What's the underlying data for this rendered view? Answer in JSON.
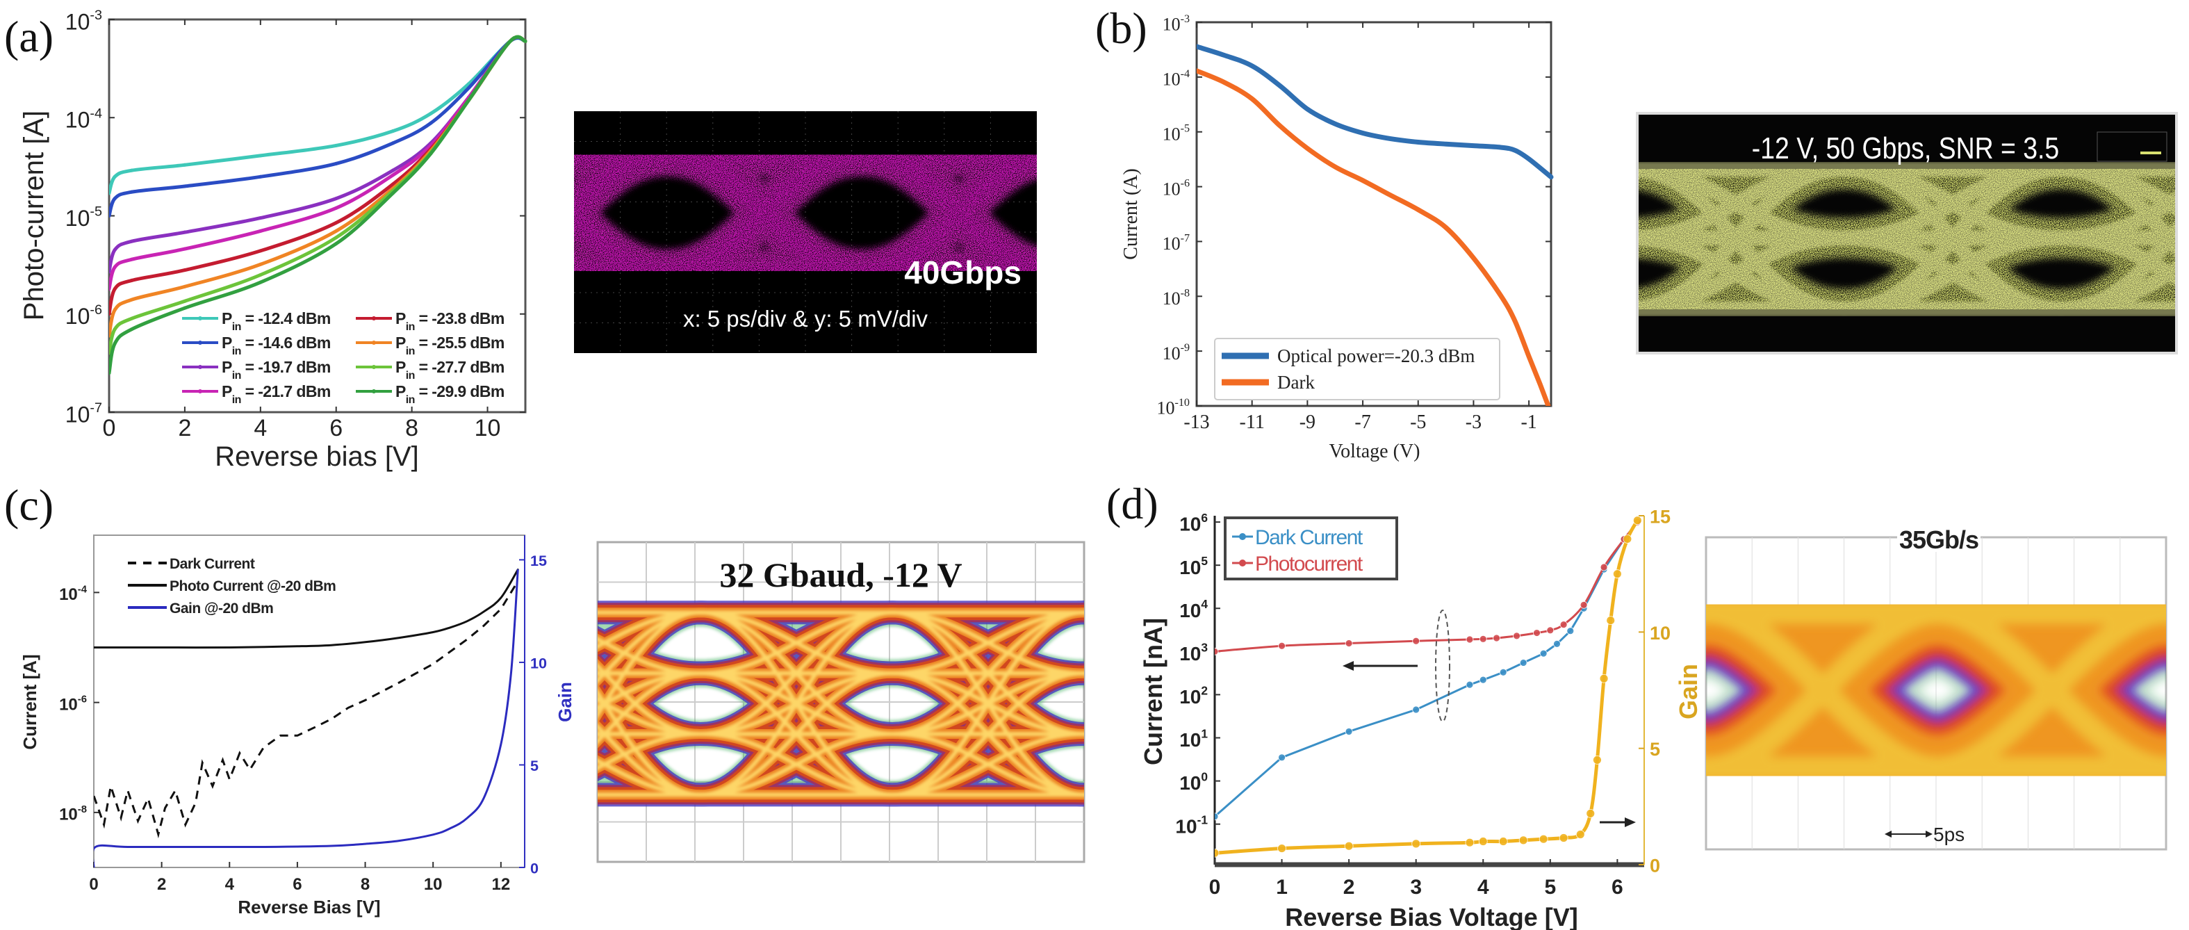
{
  "panel_labels": [
    "(a)",
    "(b)",
    "(c)",
    "(d)"
  ],
  "eyes": [
    {
      "panel": "(a)",
      "texts": [
        "40Gbps",
        "x: 5 ps/div & y: 5 mV/div"
      ],
      "trace_color": "#e020c8",
      "background": "#000000"
    },
    {
      "panel": "(b)",
      "texts": [
        "-12 V, 50 Gbps, SNR = 3.5"
      ],
      "trace_color": "#d8e070",
      "background": "#050505"
    },
    {
      "panel": "(c)",
      "texts": [
        "32 Gbaud, -12 V"
      ],
      "background": "#ffffff"
    },
    {
      "panel": "(d)",
      "texts": [
        "35Gb/s",
        "5ps"
      ],
      "background": "#ffffff"
    }
  ],
  "chart_data": [
    {
      "type": "line",
      "panel": "(a)",
      "xlabel": "Reverse bias [V]",
      "ylabel": "Photo-current [A]",
      "yscale": "log",
      "xlim": [
        0,
        11
      ],
      "ylim": [
        1e-07,
        0.001
      ],
      "xticks": [
        0,
        2,
        4,
        6,
        8,
        10
      ],
      "yticks": [
        1e-07,
        1e-06,
        1e-05,
        0.0001,
        0.001
      ],
      "ytick_labels": [
        {
          "base": "10",
          "exp": "-7"
        },
        {
          "base": "10",
          "exp": "-6"
        },
        {
          "base": "10",
          "exp": "-5"
        },
        {
          "base": "10",
          "exp": "-4"
        },
        {
          "base": "10",
          "exp": "-3"
        }
      ],
      "grid": false,
      "legend": "bottom-right",
      "series": [
        {
          "name_parts": [
            "P",
            "in",
            " = -12.4 dBm"
          ],
          "color": "#3ec8b8",
          "x": [
            0,
            0.15,
            0.6,
            2,
            4,
            6,
            7.5,
            8.5,
            9.5,
            10.6,
            11
          ],
          "y": [
            1.7e-05,
            2.5e-05,
            2.9e-05,
            3.3e-05,
            4.1e-05,
            5.2e-05,
            7.3e-05,
            0.00011,
            0.00022,
            0.0006,
            0.0006
          ]
        },
        {
          "name_parts": [
            "P",
            "in",
            " = -14.6 dBm"
          ],
          "color": "#2a4cc4",
          "x": [
            0,
            0.15,
            0.6,
            2,
            4,
            6,
            7.5,
            8.5,
            9.5,
            10.6,
            11
          ],
          "y": [
            1e-05,
            1.5e-05,
            1.75e-05,
            2e-05,
            2.5e-05,
            3.4e-05,
            5.5e-05,
            8.8e-05,
            0.0002,
            0.0006,
            0.0006
          ]
        },
        {
          "name_parts": [
            "P",
            "in",
            " = -19.7 dBm"
          ],
          "color": "#8a30c0",
          "x": [
            0,
            0.15,
            0.6,
            2,
            4,
            6,
            7.5,
            8.5,
            9.5,
            10.6,
            11
          ],
          "y": [
            2.7e-06,
            4.5e-06,
            5.5e-06,
            6.8e-06,
            9.5e-06,
            1.5e-05,
            2.9e-05,
            5.5e-05,
            0.00016,
            0.0006,
            0.0006
          ]
        },
        {
          "name_parts": [
            "P",
            "in",
            " = -21.7 dBm"
          ],
          "color": "#c824b4",
          "x": [
            0,
            0.15,
            0.6,
            2,
            4,
            6,
            7.5,
            8.5,
            9.5,
            10.6,
            11
          ],
          "y": [
            1.8e-06,
            3e-06,
            3.6e-06,
            4.6e-06,
            7e-06,
            1.2e-05,
            2.6e-05,
            5.2e-05,
            0.00016,
            0.0006,
            0.0006
          ]
        },
        {
          "name_parts": [
            "P",
            "in",
            " = -23.8 dBm"
          ],
          "color": "#c41c30",
          "x": [
            0,
            0.15,
            0.6,
            2,
            4,
            6,
            7.5,
            8.5,
            9.5,
            10.6,
            11
          ],
          "y": [
            1e-06,
            1.8e-06,
            2.2e-06,
            2.8e-06,
            4.4e-06,
            8.5e-06,
            2.1e-05,
            4.8e-05,
            0.00015,
            0.0006,
            0.0006
          ]
        },
        {
          "name_parts": [
            "P",
            "in",
            " = -25.5 dBm"
          ],
          "color": "#f08424",
          "x": [
            0,
            0.15,
            0.6,
            2,
            4,
            6,
            7.5,
            8.5,
            9.5,
            10.6,
            11
          ],
          "y": [
            6e-07,
            1.1e-06,
            1.4e-06,
            1.9e-06,
            3.2e-06,
            7e-06,
            1.9e-05,
            4.6e-05,
            0.00015,
            0.0006,
            0.0006
          ]
        },
        {
          "name_parts": [
            "P",
            "in",
            " = -27.7 dBm"
          ],
          "color": "#6cc43a",
          "x": [
            0,
            0.15,
            0.6,
            2,
            4,
            6,
            7.5,
            8.5,
            9.5,
            10.6,
            11
          ],
          "y": [
            4e-07,
            7e-07,
            9e-07,
            1.35e-06,
            2.5e-06,
            6e-06,
            1.8e-05,
            4.4e-05,
            0.00015,
            0.0006,
            0.0006
          ]
        },
        {
          "name_parts": [
            "P",
            "in",
            " = -29.9 dBm"
          ],
          "color": "#32a040",
          "x": [
            0,
            0.15,
            0.6,
            2,
            4,
            6,
            7.5,
            8.5,
            9.5,
            10.6,
            11
          ],
          "y": [
            2.5e-07,
            5e-07,
            7e-07,
            1.15e-06,
            2.1e-06,
            5.2e-06,
            1.7e-05,
            4.3e-05,
            0.00015,
            0.0006,
            0.0006
          ]
        }
      ]
    },
    {
      "type": "line",
      "panel": "(b)",
      "xlabel": "Voltage (V)",
      "ylabel": "Current (A)",
      "yscale": "log",
      "xlim": [
        -13,
        -0.2
      ],
      "ylim": [
        1e-10,
        0.001
      ],
      "xticks": [
        -13,
        -11,
        -9,
        -7,
        -5,
        -3,
        -1
      ],
      "yticks": [
        1e-10,
        1e-09,
        1e-08,
        1e-07,
        1e-06,
        1e-05,
        0.0001,
        0.001
      ],
      "ytick_labels": [
        {
          "base": "10",
          "exp": "-10"
        },
        {
          "base": "10",
          "exp": "-9"
        },
        {
          "base": "10",
          "exp": "-8"
        },
        {
          "base": "10",
          "exp": "-7"
        },
        {
          "base": "10",
          "exp": "-6"
        },
        {
          "base": "10",
          "exp": "-5"
        },
        {
          "base": "10",
          "exp": "-4"
        },
        {
          "base": "10",
          "exp": "-3"
        }
      ],
      "grid": false,
      "legend": "bottom-left",
      "series": [
        {
          "name": "Optical power=-20.3 dBm",
          "color": "#2f6fb2",
          "x": [
            -13,
            -12,
            -11,
            -10,
            -9,
            -8,
            -7,
            -6,
            -5,
            -4,
            -3,
            -2,
            -1.5,
            -1,
            -0.2
          ],
          "y": [
            0.00036,
            0.00025,
            0.00016,
            7e-05,
            2.6e-05,
            1.4e-05,
            9.5e-06,
            7.5e-06,
            6.5e-06,
            6e-06,
            5.6e-06,
            5.2e-06,
            4.6e-06,
            3.2e-06,
            1.5e-06
          ]
        },
        {
          "name": "Dark",
          "color": "#f26b22",
          "x": [
            -13,
            -12,
            -11,
            -10,
            -9,
            -8,
            -7,
            -6,
            -5,
            -4,
            -3,
            -2,
            -1.5,
            -1,
            -0.6,
            -0.3
          ],
          "y": [
            0.00013,
            8e-05,
            4e-05,
            1.3e-05,
            5e-06,
            2.3e-06,
            1.3e-06,
            7e-07,
            3.8e-07,
            1.8e-07,
            5e-08,
            1e-08,
            3.5e-09,
            8e-10,
            2.5e-10,
            1e-10
          ]
        }
      ]
    },
    {
      "type": "line",
      "panel": "(c)",
      "xlabel": "Reverse Bias [V]",
      "ylabel": "Current [A]",
      "y2label": "Gain",
      "yscale": "log",
      "xlim": [
        0,
        12.7
      ],
      "ylim": [
        1e-09,
        0.0011
      ],
      "y2lim": [
        0,
        16.2
      ],
      "xticks": [
        0,
        2,
        4,
        6,
        8,
        10,
        12
      ],
      "yticks": [
        1e-08,
        1e-06,
        0.0001
      ],
      "ytick_labels": [
        {
          "base": "10",
          "exp": "-8"
        },
        {
          "base": "10",
          "exp": "-6"
        },
        {
          "base": "10",
          "exp": "-4"
        }
      ],
      "y2ticks": [
        0,
        5,
        10,
        15
      ],
      "grid": false,
      "legend": "top-left",
      "series": [
        {
          "name": "Dark Current",
          "color": "#111111",
          "style": "dashed",
          "x": [
            0,
            0.3,
            0.5,
            0.8,
            1,
            1.3,
            1.6,
            1.9,
            2.1,
            2.4,
            2.7,
            3,
            3.2,
            3.5,
            3.8,
            4,
            4.3,
            4.6,
            5,
            5.5,
            6,
            6.5,
            7,
            7.5,
            8,
            9,
            10,
            11,
            11.5,
            12,
            12.5
          ],
          "y": [
            2e-08,
            6e-09,
            3e-08,
            8e-09,
            2.5e-08,
            7e-09,
            1.8e-08,
            4e-09,
            1.2e-08,
            2.5e-08,
            6e-09,
            1.5e-08,
            8e-08,
            3e-08,
            9e-08,
            4e-08,
            1.2e-07,
            6e-08,
            1.5e-07,
            2.5e-07,
            2.5e-07,
            3.5e-07,
            5e-07,
            8e-07,
            1.1e-06,
            2.3e-06,
            5e-06,
            1.4e-05,
            2.5e-05,
            5e-05,
            0.00016
          ]
        },
        {
          "name": "Photo Current @-20 dBm",
          "color": "#111111",
          "x": [
            0,
            2,
            4,
            6,
            7,
            8,
            9,
            10,
            10.5,
            11,
            11.5,
            12,
            12.5
          ],
          "y": [
            1e-05,
            1e-05,
            1e-05,
            1.05e-05,
            1.1e-05,
            1.25e-05,
            1.5e-05,
            1.9e-05,
            2.3e-05,
            3e-05,
            4.5e-05,
            8e-05,
            0.00026
          ]
        },
        {
          "name": "Gain @-20 dBm",
          "color": "#2b2bbf",
          "axis": "right",
          "x": [
            0,
            0.05,
            1,
            3,
            5,
            7,
            8,
            9,
            10,
            10.5,
            11,
            11.5,
            12,
            12.3,
            12.5
          ],
          "y": [
            0,
            1,
            1,
            1,
            1,
            1.05,
            1.15,
            1.3,
            1.6,
            1.9,
            2.4,
            3.4,
            6,
            9.5,
            14.5
          ]
        }
      ]
    },
    {
      "type": "line",
      "panel": "(d)",
      "xlabel": "Reverse Bias Voltage [V]",
      "ylabel": "Current [nA]",
      "y2label": "Gain",
      "yscale": "log",
      "xlim": [
        0,
        6.4
      ],
      "ylim": [
        0.0115,
        1400000.0
      ],
      "y2lim": [
        0,
        15
      ],
      "xticks": [
        0,
        1,
        2,
        3,
        4,
        5,
        6
      ],
      "yticks": [
        0.1,
        1,
        10,
        100,
        1000,
        10000,
        100000,
        1000000
      ],
      "ytick_labels": [
        {
          "base": "10",
          "exp": "-1"
        },
        {
          "base": "10",
          "exp": "0"
        },
        {
          "base": "10",
          "exp": "1"
        },
        {
          "base": "10",
          "exp": "2"
        },
        {
          "base": "10",
          "exp": "3"
        },
        {
          "base": "10",
          "exp": "4"
        },
        {
          "base": "10",
          "exp": "5"
        },
        {
          "base": "10",
          "exp": "6"
        }
      ],
      "y2ticks": [
        0,
        5,
        10,
        15
      ],
      "grid": false,
      "legend": "top-left",
      "series": [
        {
          "name": "Dark Current",
          "color": "#3a8fc6",
          "markers": true,
          "x": [
            0,
            1,
            2,
            3,
            3.8,
            4,
            4.3,
            4.6,
            4.9,
            5.1,
            5.3,
            5.5,
            5.8,
            6.1,
            6.3
          ],
          "y": [
            0.15,
            3.5,
            14,
            45,
            170,
            220,
            330,
            550,
            900,
            1500,
            3000,
            10000,
            80000,
            400000,
            1000000
          ]
        },
        {
          "name": "Photocurrent",
          "color": "#d24a4e",
          "markers": true,
          "x": [
            0,
            1,
            2,
            3,
            3.8,
            4,
            4.2,
            4.5,
            4.8,
            5,
            5.2,
            5.5,
            5.8,
            6.1,
            6.3
          ],
          "y": [
            1000,
            1350,
            1550,
            1750,
            1900,
            1950,
            2050,
            2300,
            2700,
            3100,
            4200,
            12000,
            90000,
            400000,
            1000000
          ]
        },
        {
          "name": "Gain",
          "color": "#f0b21e",
          "axis": "right",
          "markers": true,
          "x": [
            0,
            1,
            2,
            3,
            3.8,
            4,
            4.3,
            4.6,
            4.9,
            5.2,
            5.45,
            5.6,
            5.7,
            5.8,
            5.9,
            6,
            6.15,
            6.3
          ],
          "y": [
            0.5,
            0.7,
            0.8,
            0.9,
            0.95,
            1,
            1,
            1.05,
            1.1,
            1.15,
            1.3,
            2.2,
            4.5,
            8,
            10.5,
            12.5,
            14,
            14.8
          ]
        }
      ]
    }
  ]
}
